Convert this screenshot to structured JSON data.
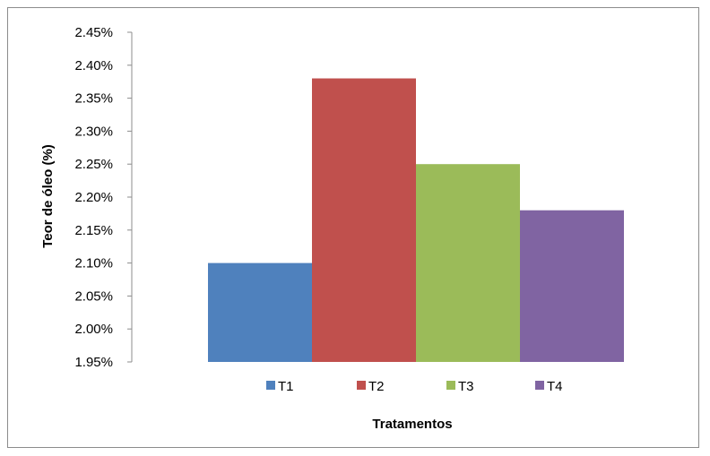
{
  "chart_data": {
    "type": "bar",
    "title": "",
    "xlabel": "Tratamentos",
    "ylabel": "Teor de óleo (%)",
    "ylim": [
      1.95,
      2.45
    ],
    "y_ticks": [
      "1.95%",
      "2.00%",
      "2.05%",
      "2.10%",
      "2.15%",
      "2.20%",
      "2.25%",
      "2.30%",
      "2.35%",
      "2.40%",
      "2.45%"
    ],
    "grid": false,
    "legend_position": "bottom",
    "series": [
      {
        "name": "T1",
        "values": [
          2.1
        ],
        "color": "#4f81bd"
      },
      {
        "name": "T2",
        "values": [
          2.38
        ],
        "color": "#c0504d"
      },
      {
        "name": "T3",
        "values": [
          2.25
        ],
        "color": "#9bbb59"
      },
      {
        "name": "T4",
        "values": [
          2.18
        ],
        "color": "#8064a2"
      }
    ]
  }
}
